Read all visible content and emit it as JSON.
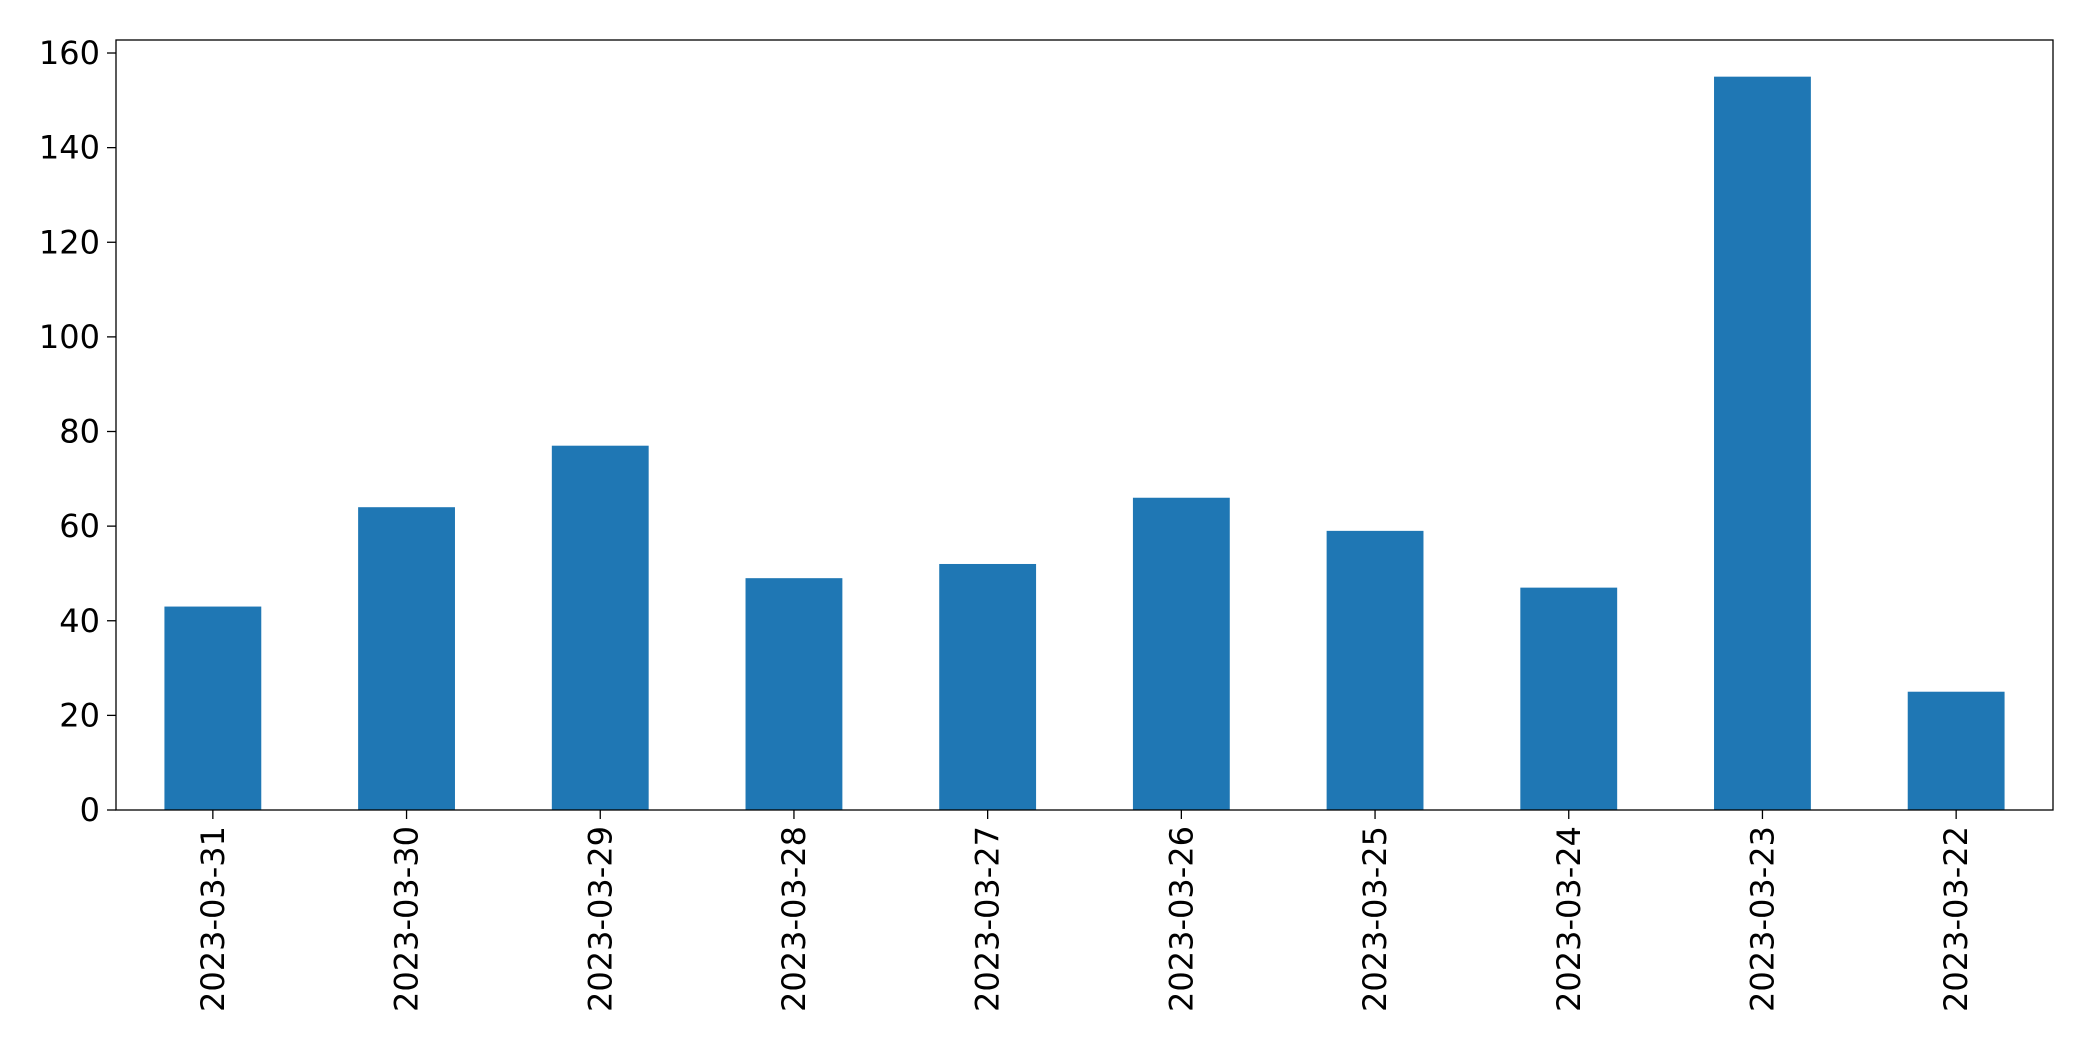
{
  "chart_data": {
    "type": "bar",
    "categories": [
      "2023-03-31",
      "2023-03-30",
      "2023-03-29",
      "2023-03-28",
      "2023-03-27",
      "2023-03-26",
      "2023-03-25",
      "2023-03-24",
      "2023-03-23",
      "2023-03-22"
    ],
    "values": [
      43,
      64,
      77,
      49,
      52,
      66,
      59,
      47,
      155,
      25
    ],
    "color": "#1f77b4",
    "ylim": [
      0,
      162.75
    ],
    "yticks": [
      0,
      20,
      40,
      60,
      80,
      100,
      120,
      140,
      160
    ],
    "grid": false
  }
}
